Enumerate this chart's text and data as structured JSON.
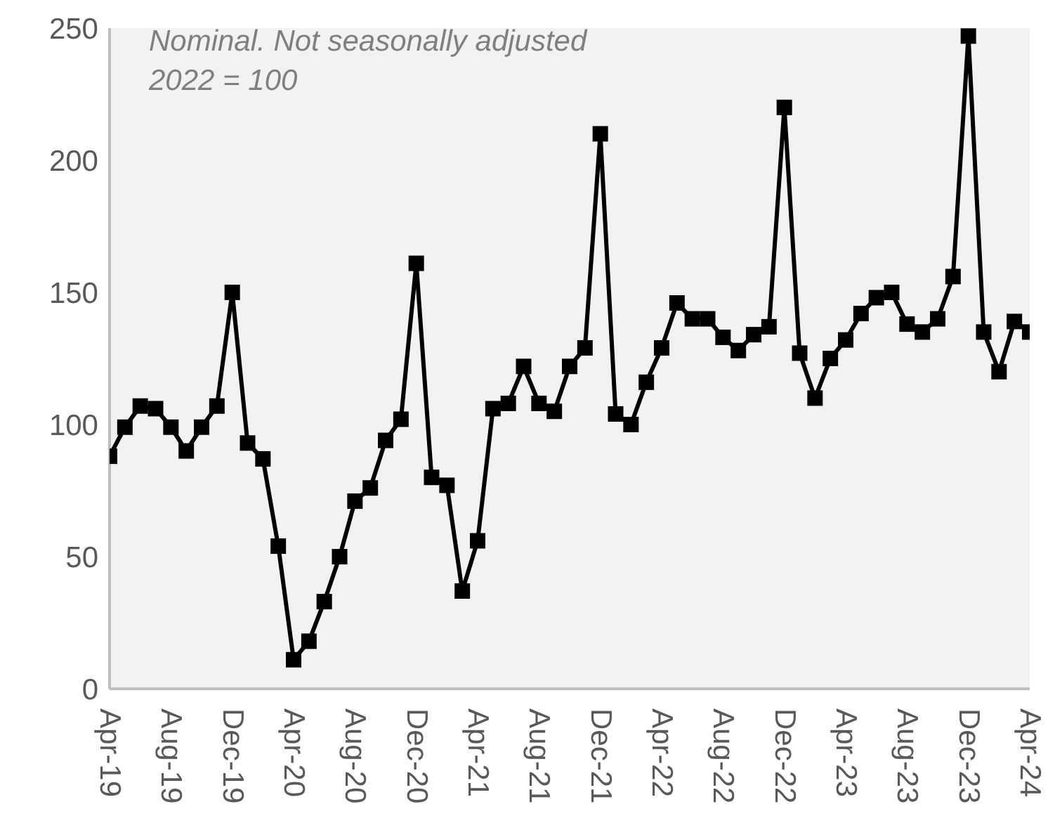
{
  "chart_data": {
    "type": "line",
    "annotations": [
      "Nominal. Not seasonally adjusted",
      "2022 = 100"
    ],
    "categories": [
      "Apr-19",
      null,
      null,
      null,
      "Aug-19",
      null,
      null,
      null,
      "Dec-19",
      null,
      null,
      null,
      "Apr-20",
      null,
      null,
      null,
      "Aug-20",
      null,
      null,
      null,
      "Dec-20",
      null,
      null,
      null,
      "Apr-21",
      null,
      null,
      null,
      "Aug-21",
      null,
      null,
      null,
      "Dec-21",
      null,
      null,
      null,
      "Apr-22",
      null,
      null,
      null,
      "Aug-22",
      null,
      null,
      null,
      "Dec-22",
      null,
      null,
      null,
      "Apr-23",
      null,
      null,
      null,
      "Aug-23",
      null,
      null,
      null,
      "Dec-23",
      null,
      null,
      null,
      "Apr-24"
    ],
    "series": [
      {
        "color": "#000000",
        "values": [
          88,
          99,
          107,
          106,
          99,
          90,
          99,
          107,
          150,
          93,
          87,
          54,
          11,
          18,
          33,
          50,
          71,
          76,
          94,
          102,
          161,
          80,
          77,
          37,
          56,
          106,
          108,
          122,
          108,
          105,
          122,
          129,
          210,
          104,
          100,
          116,
          129,
          146,
          140,
          140,
          133,
          128,
          134,
          137,
          220,
          127,
          110,
          125,
          132,
          142,
          148,
          150,
          138,
          135,
          140,
          156,
          247,
          135,
          120,
          139,
          135
        ]
      }
    ],
    "ylim": [
      0,
      250
    ],
    "yticks": [
      0,
      50,
      100,
      150,
      200,
      250
    ],
    "grid": false,
    "legend": false,
    "marker": "square",
    "line_style": "solid"
  }
}
